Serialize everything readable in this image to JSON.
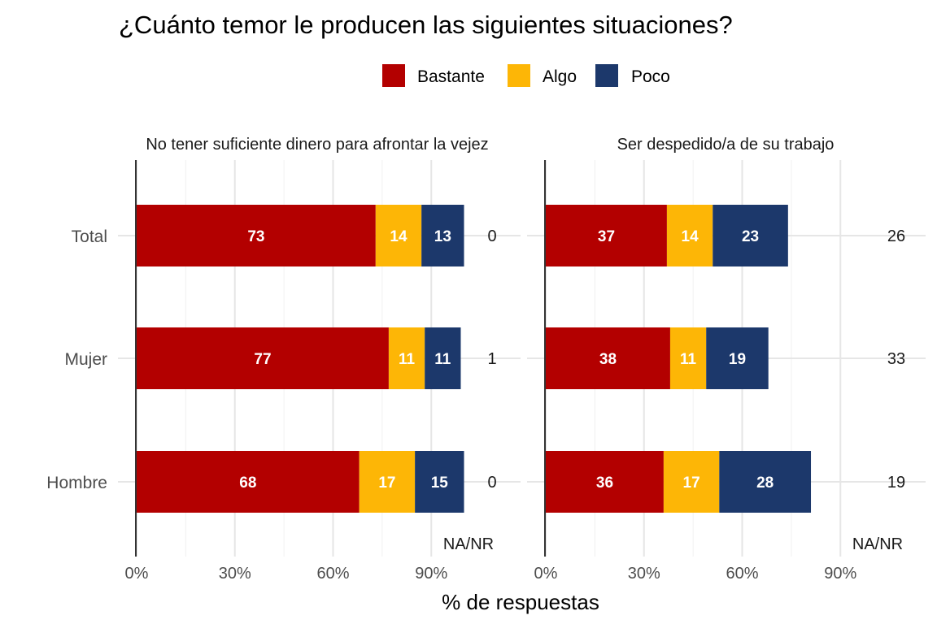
{
  "chart_data": {
    "type": "bar",
    "orientation": "horizontal",
    "stacked": true,
    "title": "¿Cuánto temor le producen las siguientes situaciones?",
    "xlabel": "% de respuestas",
    "xlim": [
      0,
      100
    ],
    "x_ticks": [
      0,
      30,
      60,
      90
    ],
    "x_tick_labels": [
      "0%",
      "30%",
      "60%",
      "90%"
    ],
    "legend_position": "top",
    "grid": true,
    "legend": [
      {
        "name": "Bastante",
        "color": "#b30000"
      },
      {
        "name": "Algo",
        "color": "#fdb606"
      },
      {
        "name": "Poco",
        "color": "#1c386b"
      }
    ],
    "categories": [
      "Total",
      "Mujer",
      "Hombre"
    ],
    "na_title": "NA/NR",
    "panels": [
      {
        "title": "No tener suficiente dinero para afrontar la vejez",
        "series": [
          {
            "name": "Bastante",
            "values": [
              73,
              77,
              68
            ]
          },
          {
            "name": "Algo",
            "values": [
              14,
              11,
              17
            ]
          },
          {
            "name": "Poco",
            "values": [
              13,
              11,
              15
            ]
          }
        ],
        "na_nr": [
          0,
          1,
          0
        ]
      },
      {
        "title": "Ser despedido/a de su trabajo",
        "series": [
          {
            "name": "Bastante",
            "values": [
              37,
              38,
              36
            ]
          },
          {
            "name": "Algo",
            "values": [
              14,
              11,
              17
            ]
          },
          {
            "name": "Poco",
            "values": [
              23,
              19,
              28
            ]
          }
        ],
        "na_nr": [
          26,
          33,
          19
        ]
      }
    ]
  }
}
